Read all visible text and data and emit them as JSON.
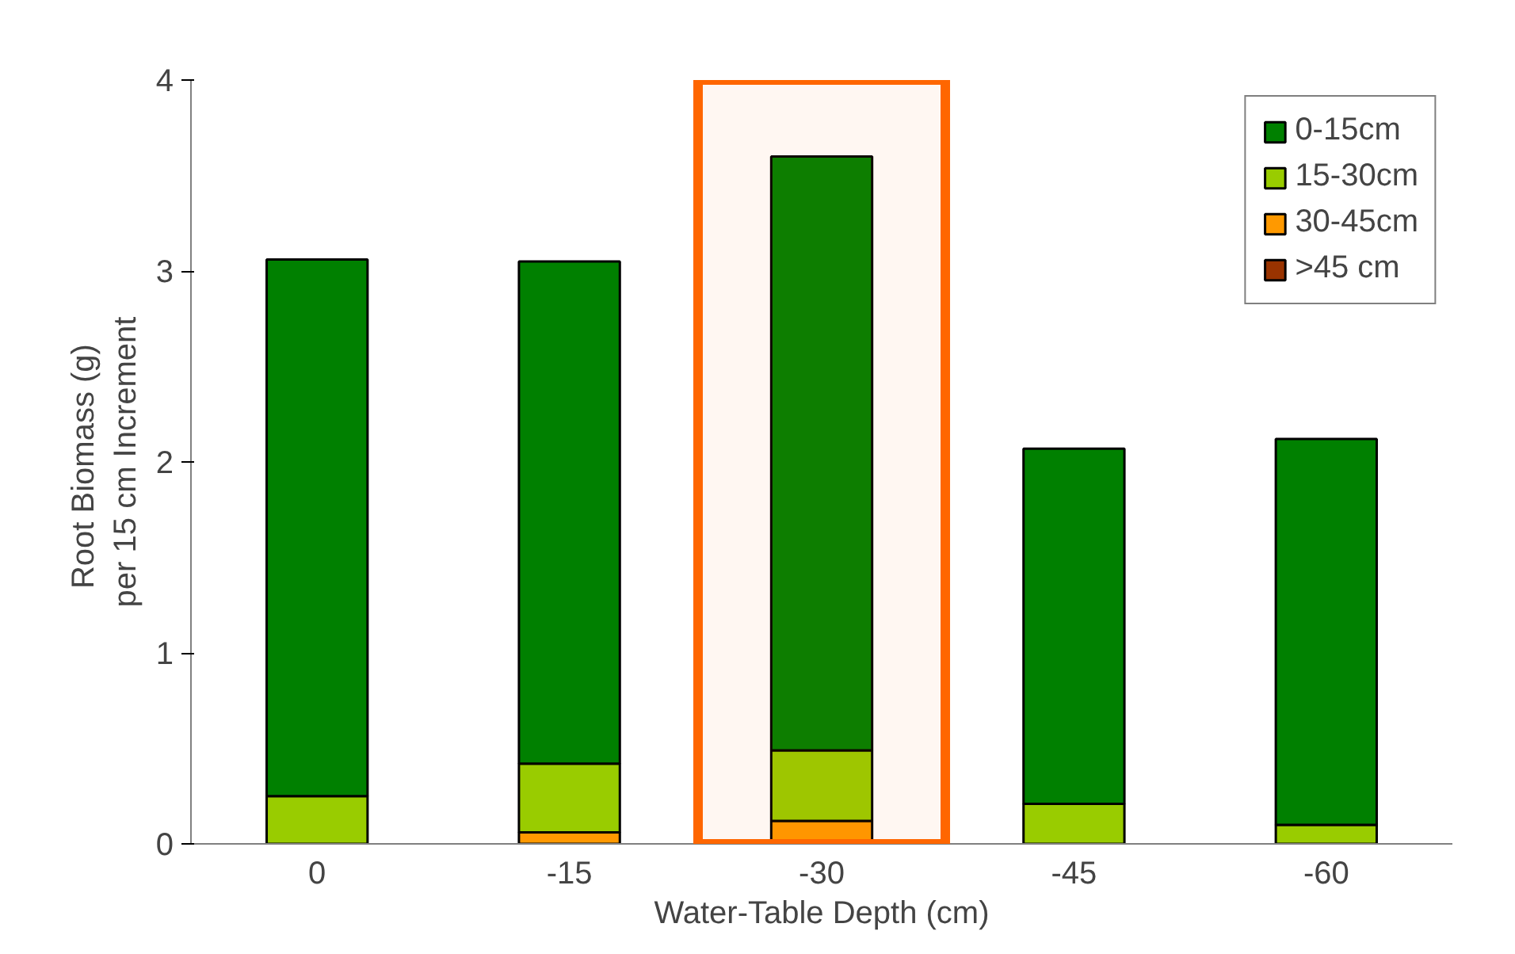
{
  "chart_data": {
    "type": "bar",
    "stacked": true,
    "xlabel": "Water-Table Depth (cm)",
    "ylabel": "Root  Biomass (g)\nper 15 cm Increment",
    "categories": [
      "0",
      "-15",
      "-30",
      "-45",
      "-60"
    ],
    "series": [
      {
        "name": ">45 cm",
        "color": "#993300",
        "values": [
          0,
          0,
          0,
          0,
          0
        ]
      },
      {
        "name": "30-45cm",
        "color": "#ff9900",
        "values": [
          null,
          0.06,
          0.12,
          null,
          0
        ]
      },
      {
        "name": "15-30cm",
        "color": "#99cc00",
        "values": [
          0.25,
          0.36,
          0.37,
          0.21,
          0.1
        ]
      },
      {
        "name": "0-15cm",
        "color": "#008000",
        "values": [
          2.81,
          2.63,
          3.11,
          1.86,
          2.02
        ]
      }
    ],
    "ylim": [
      0,
      4
    ],
    "yticks": [
      0,
      1,
      2,
      3,
      4
    ],
    "grid": false,
    "legend": "top right",
    "bands": [
      {
        "axis": "x",
        "from": "-30",
        "to": "-30",
        "color": "#ff6600"
      }
    ]
  }
}
